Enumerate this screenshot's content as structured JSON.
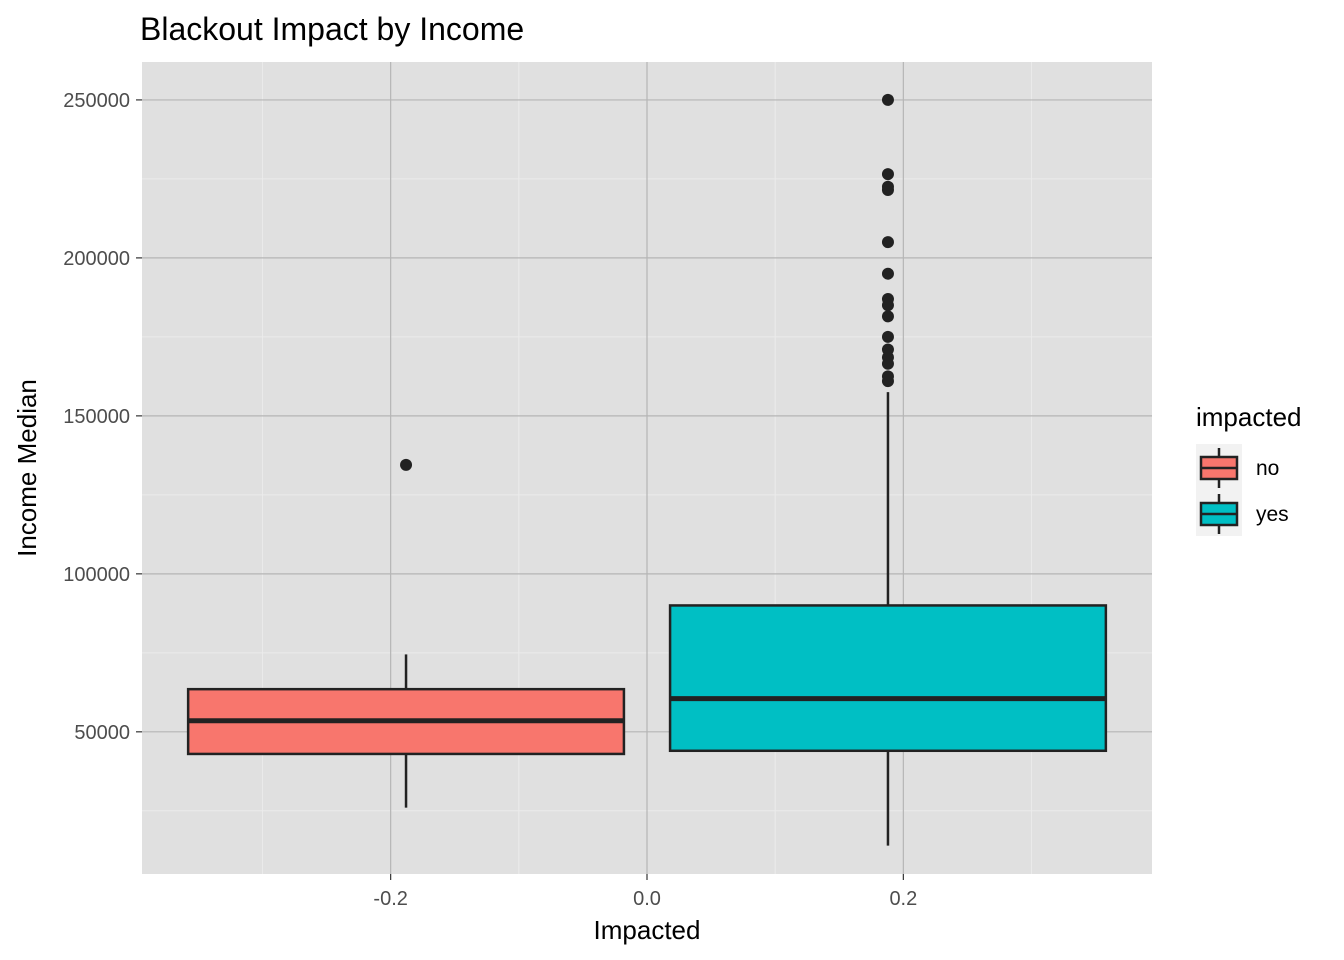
{
  "chart_data": {
    "type": "boxplot",
    "title": "Blackout Impact by Income",
    "xlabel": "Impacted",
    "ylabel": "Income Median",
    "xlim": [
      -0.394,
      0.394
    ],
    "ylim": [
      5000,
      262000
    ],
    "x_ticks": [
      {
        "value": -0.2,
        "label": "-0.2"
      },
      {
        "value": 0.0,
        "label": "0.0"
      },
      {
        "value": 0.2,
        "label": "0.2"
      }
    ],
    "y_ticks": [
      {
        "value": 50000,
        "label": "50000"
      },
      {
        "value": 100000,
        "label": "100000"
      },
      {
        "value": 150000,
        "label": "150000"
      },
      {
        "value": 200000,
        "label": "200000"
      },
      {
        "value": 250000,
        "label": "250000"
      }
    ],
    "grid": true,
    "legend": {
      "title": "impacted",
      "position": "right"
    },
    "series": [
      {
        "name": "no",
        "color": "#F8766D",
        "x_center": -0.188,
        "x_min": -0.358,
        "x_max": -0.018,
        "whisker_low": 26000,
        "q1": 43000,
        "median": 53500,
        "q3": 63500,
        "whisker_high": 74500,
        "outliers": [
          134500
        ]
      },
      {
        "name": "yes",
        "color": "#00BFC4",
        "x_center": 0.188,
        "x_min": 0.018,
        "x_max": 0.358,
        "whisker_low": 14000,
        "q1": 44000,
        "median": 60500,
        "q3": 90000,
        "whisker_high": 157500,
        "outliers": [
          161000,
          162500,
          166500,
          168500,
          171000,
          175000,
          181500,
          185000,
          187000,
          195000,
          205000,
          221500,
          222500,
          226500,
          250000
        ]
      }
    ]
  }
}
